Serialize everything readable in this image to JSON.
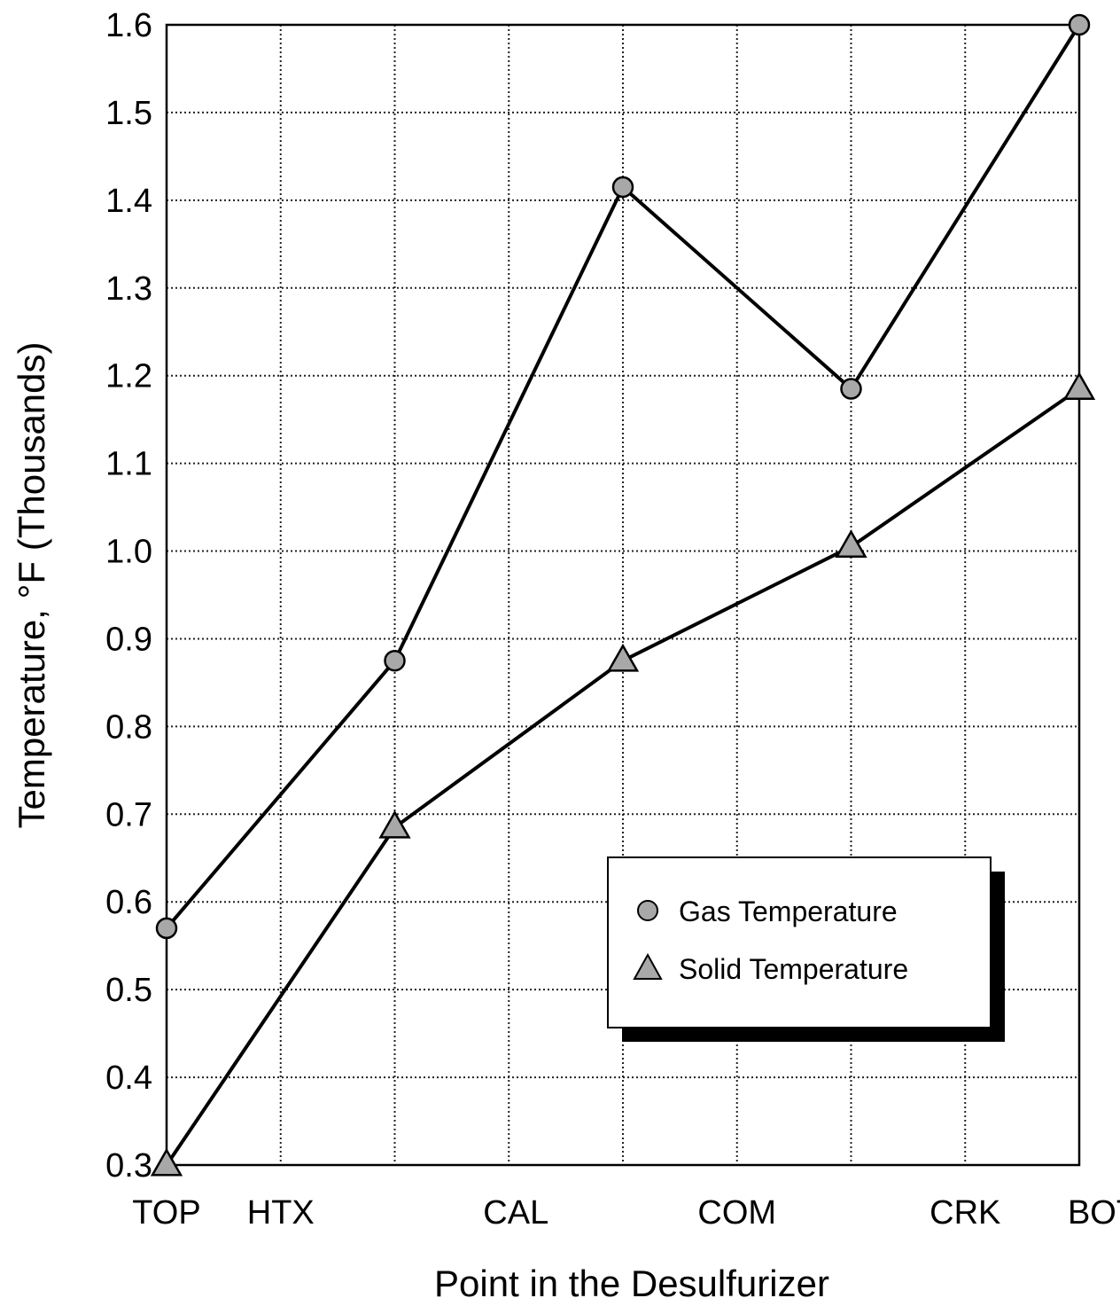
{
  "chart_data": {
    "type": "line",
    "x_tick_labels": [
      "TOP",
      "HTX",
      "CAL",
      "COM",
      "CRK",
      "BOT"
    ],
    "y_tick_labels": [
      "0.3",
      "0.4",
      "0.5",
      "0.6",
      "0.7",
      "0.8",
      "0.9",
      "1.0",
      "1.1",
      "1.2",
      "1.3",
      "1.4",
      "1.5",
      "1.6"
    ],
    "xlabel": "Point in the Desulfurizer",
    "ylabel": "Temperature, °F (Thousands)",
    "ylim": [
      0.3,
      1.6
    ],
    "grid": true,
    "legend_position": "lower-right",
    "series": [
      {
        "name": "Gas Temperature",
        "marker": "circle",
        "x": [
          "TOP",
          "between HTX and CAL",
          "between CAL and COM",
          "between COM and CRK",
          "BOT"
        ],
        "values": [
          0.57,
          0.875,
          1.415,
          1.185,
          1.6
        ]
      },
      {
        "name": "Solid Temperature",
        "marker": "triangle",
        "x": [
          "TOP",
          "between HTX and CAL",
          "between CAL and COM",
          "between COM and CRK",
          "BOT"
        ],
        "values": [
          0.3,
          0.685,
          0.875,
          1.005,
          1.185
        ]
      }
    ],
    "colors": {
      "line": "#000000",
      "marker_fill": "#a8a8a8",
      "grid": "#222222",
      "legend_shadow": "#000000"
    }
  }
}
